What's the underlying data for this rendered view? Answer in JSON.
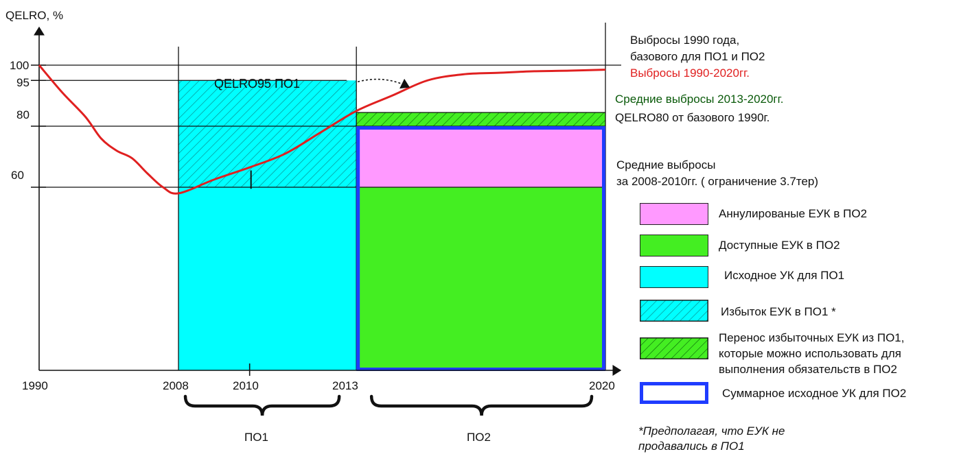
{
  "chart_data": {
    "type": "area",
    "ylabel": "QELRO, %",
    "y_ticks": [
      "100",
      "95",
      "80",
      "60"
    ],
    "x_ticks": [
      "1990",
      "2008",
      "2010",
      "2013",
      "2020"
    ],
    "xlim": [
      1990,
      2020
    ],
    "ylim": [
      0,
      100
    ],
    "periods": [
      {
        "label": "ПО1",
        "from": 2008,
        "to": 2013
      },
      {
        "label": "ПО2",
        "from": 2013,
        "to": 2020
      }
    ],
    "bars": [
      {
        "name": "Исходное УК для ПО1",
        "from": 2008,
        "to": 2013,
        "y_from": 0,
        "y_to": 60,
        "fill": "cyan"
      },
      {
        "name": "Избыток ЕУК в ПО1",
        "from": 2008,
        "to": 2013,
        "y_from": 60,
        "y_to": 95,
        "fill": "cyan-hatched"
      },
      {
        "name": "Доступные ЕУК в ПО2",
        "from": 2013,
        "to": 2020,
        "y_from": 0,
        "y_to": 60,
        "fill": "green"
      },
      {
        "name": "Аннулированые ЕУК в ПО2",
        "from": 2013,
        "to": 2020,
        "y_from": 60,
        "y_to": 80,
        "fill": "pink"
      },
      {
        "name": "Перенос избыточных ЕУК",
        "from": 2013,
        "to": 2020,
        "y_from": 80,
        "y_to": 84.5,
        "fill": "green-hatched"
      }
    ],
    "series": [
      {
        "name": "Выбросы 1990-2020гг.",
        "x": [
          1990,
          1993,
          1996,
          1998,
          2000,
          2002,
          2004,
          2006,
          2008,
          2009,
          2010,
          2011,
          2012,
          2013,
          2014,
          2015,
          2016,
          2017,
          2018,
          2019,
          2020
        ],
        "y": [
          100,
          91,
          83,
          76,
          72,
          69.5,
          64.5,
          60,
          58,
          62.5,
          66.5,
          71,
          78,
          85,
          90,
          95,
          97,
          97.5,
          98,
          98.2,
          98.5
        ]
      }
    ],
    "reference_lines": [
      100,
      95,
      80,
      60
    ],
    "annotations": {
      "qelro95": "QELRO95 ПО1",
      "base_1990": [
        "Выбросы 1990 года,",
        "базового для ПО1 и ПО2"
      ],
      "emissions": "Выбросы 1990-2020гг.",
      "avg_2013_2020": "Средние выбросы 2013-2020гг.",
      "qelro80": "QELRO80 от базового 1990г.",
      "avg_2008_2010": [
        "Средние выбросы",
        "за 2008-2010гг. ( ограничение 3.7тер)"
      ]
    },
    "legend": [
      {
        "label": [
          "Аннулированые ЕУК в ПО2"
        ],
        "swatch": "pink"
      },
      {
        "label": [
          "Доступные ЕУК в ПО2"
        ],
        "swatch": "green"
      },
      {
        "label": [
          "Исходное УК для ПО1"
        ],
        "swatch": "cyan"
      },
      {
        "label": [
          "Избыток ЕУК в ПО1 *"
        ],
        "swatch": "cyan-hatched"
      },
      {
        "label": [
          "Перенос избыточных ЕУК из ПО1,",
          "которые можно использовать для",
          "выполнения обязательств в ПО2"
        ],
        "swatch": "green-hatched"
      },
      {
        "label": [
          "Суммарное исходное УК для ПО2"
        ],
        "swatch": "blue-outline"
      }
    ],
    "footnote": [
      "*Предполагая, что ЕУК не",
      "продавались в ПО1"
    ]
  },
  "colors": {
    "cyan": "#00ffff",
    "green": "#44ee22",
    "pink": "#ff99ff",
    "blue": "#1f3cff",
    "red": "#e02020",
    "hatch": "#0a8a8a",
    "green_hatch": "#0a6a0a"
  }
}
